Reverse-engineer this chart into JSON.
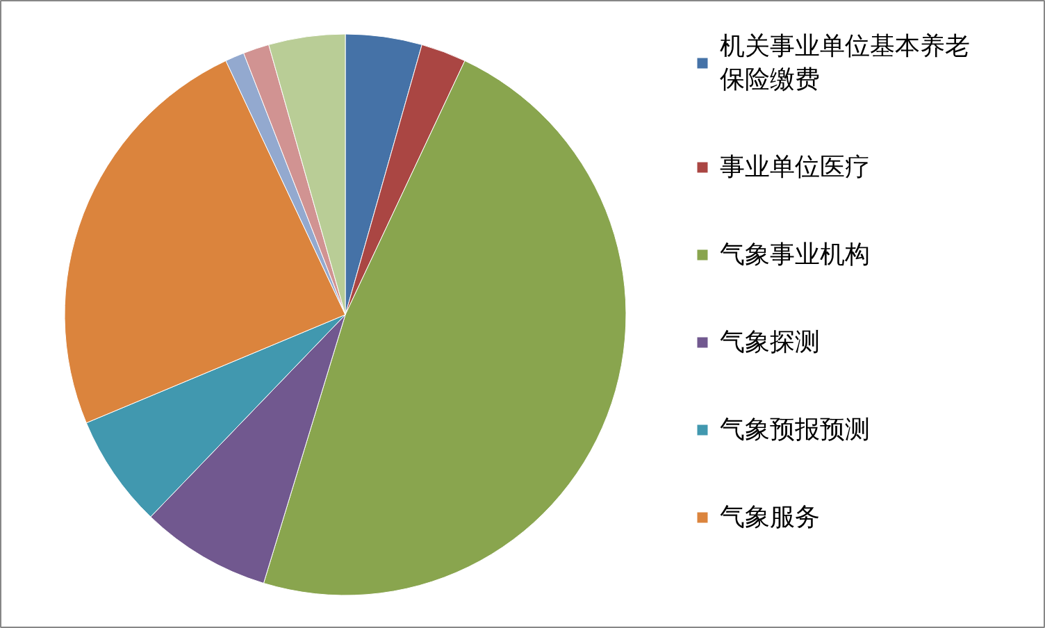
{
  "chart_data": {
    "type": "pie",
    "categories": [
      "机关事业单位基本养老保险缴费",
      "事业单位医疗",
      "气象事业机构",
      "气象探测",
      "气象预报预测",
      "气象服务",
      null,
      null,
      null
    ],
    "values": [
      4.4,
      2.6,
      47.7,
      7.5,
      6.5,
      24.3,
      1.1,
      1.5,
      4.4
    ],
    "colors": [
      "#4572a7",
      "#aa4643",
      "#89a54e",
      "#71588f",
      "#4198af",
      "#db843d",
      "#93a9cf",
      "#d19392",
      "#b9cd96"
    ],
    "legend": "right"
  }
}
